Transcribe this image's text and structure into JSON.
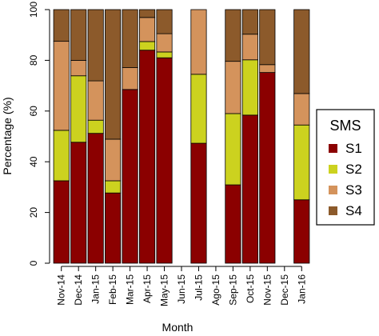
{
  "chart_data": {
    "type": "bar",
    "stacked": true,
    "xlabel": "Month",
    "ylabel": "Percentage (%)",
    "ylim": [
      0,
      100
    ],
    "yticks": [
      0,
      20,
      40,
      60,
      80,
      100
    ],
    "grid": false,
    "legend_position": "right",
    "legend_title": "SMS",
    "categories": [
      "Nov-14",
      "Dec-14",
      "Jan-15",
      "Feb-15",
      "Mar-15",
      "Apr-15",
      "May-15",
      "Jun-15",
      "Jul-15",
      "Ago-15",
      "Sep-15",
      "Oct-15",
      "Nov-15",
      "Dec-15",
      "Jan-16"
    ],
    "series": [
      {
        "name": "S1",
        "color": "#8B0000",
        "values": [
          32.5,
          47.7,
          51.2,
          27.7,
          68.5,
          84.0,
          81.0,
          null,
          47.3,
          null,
          30.9,
          58.4,
          75.2,
          null,
          25.0
        ]
      },
      {
        "name": "S2",
        "color": "#CCD21F",
        "values": [
          19.9,
          26.2,
          5.2,
          4.8,
          0.0,
          3.4,
          2.3,
          null,
          27.2,
          null,
          28.1,
          21.8,
          0.0,
          null,
          29.5
        ]
      },
      {
        "name": "S3",
        "color": "#D4935C",
        "values": [
          35.1,
          6.1,
          15.5,
          16.4,
          8.6,
          9.5,
          7.2,
          null,
          25.5,
          null,
          20.6,
          10.1,
          3.1,
          null,
          12.4
        ]
      },
      {
        "name": "S4",
        "color": "#8C5A2B",
        "values": [
          12.5,
          20.0,
          28.1,
          51.1,
          22.9,
          3.1,
          9.5,
          null,
          0.0,
          null,
          20.4,
          9.7,
          21.7,
          null,
          33.1
        ]
      }
    ]
  }
}
